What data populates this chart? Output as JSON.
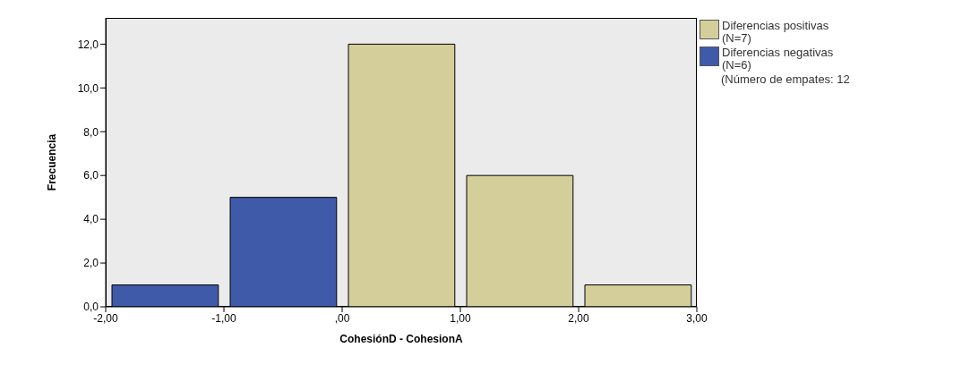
{
  "chart_data": {
    "type": "histogram",
    "xlabel": "CohesiónD - CohesionA",
    "ylabel": "Frecuencia",
    "bins": [
      -2,
      -1,
      0,
      1,
      2,
      3
    ],
    "series": [
      {
        "name": "Diferencias positivas (N=7)",
        "color": "#d4cf9a",
        "values": [
          null,
          null,
          12,
          6,
          1
        ]
      },
      {
        "name": "Diferencias negativas (N=6)",
        "color": "#3f5aa8",
        "values": [
          1,
          5,
          null,
          null,
          null
        ]
      }
    ],
    "xlim": [
      -2,
      3
    ],
    "xticks": [
      {
        "value": -2,
        "label": "-2,00"
      },
      {
        "value": -1,
        "label": "-1,00"
      },
      {
        "value": 0,
        "label": ",00"
      },
      {
        "value": 1,
        "label": "1,00"
      },
      {
        "value": 2,
        "label": "2,00"
      },
      {
        "value": 3,
        "label": "3,00"
      }
    ],
    "ylim": [
      0,
      13.2
    ],
    "yticks": [
      {
        "value": 0,
        "label": "0,0"
      },
      {
        "value": 2,
        "label": "2,0"
      },
      {
        "value": 4,
        "label": "4,0"
      },
      {
        "value": 6,
        "label": "6,0"
      },
      {
        "value": 8,
        "label": "8,0"
      },
      {
        "value": 10,
        "label": "10,0"
      },
      {
        "value": 12,
        "label": "12,0"
      }
    ],
    "legend": "right",
    "annotations": [
      "(Número de empates: 12"
    ]
  }
}
